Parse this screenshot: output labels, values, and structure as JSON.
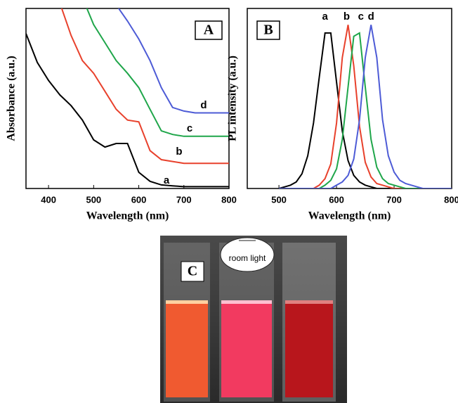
{
  "chart_data": [
    {
      "type": "line",
      "panel_label": "A",
      "x_label": "Wavelength (nm)",
      "y_label": "Absorbance (a.u.)",
      "x": [
        350,
        375,
        400,
        425,
        450,
        475,
        500,
        525,
        550,
        575,
        600,
        625,
        650,
        675,
        700,
        725,
        750,
        775,
        800
      ],
      "xlim": [
        350,
        800
      ],
      "xticks": [
        400,
        500,
        600,
        700,
        800
      ],
      "ylim": [
        0,
        10
      ],
      "series": [
        {
          "name": "a",
          "color": "#000000",
          "values": [
            8.6,
            7.0,
            6.0,
            5.2,
            4.6,
            3.8,
            2.7,
            2.3,
            2.5,
            2.5,
            0.9,
            0.4,
            0.2,
            0.15,
            0.1,
            0.1,
            0.1,
            0.1,
            0.1
          ]
        },
        {
          "name": "b",
          "color": "#e8412c",
          "values": [
            null,
            null,
            null,
            10.3,
            8.5,
            7.1,
            6.4,
            5.4,
            4.4,
            3.8,
            3.7,
            2.1,
            1.6,
            1.5,
            1.4,
            1.4,
            1.4,
            1.4,
            1.4
          ]
        },
        {
          "name": "c",
          "color": "#1fa64a",
          "values": [
            null,
            null,
            null,
            null,
            null,
            10.6,
            9.1,
            8.1,
            7.1,
            6.4,
            5.6,
            4.4,
            3.2,
            3.0,
            2.9,
            2.9,
            2.9,
            2.9,
            2.9
          ]
        },
        {
          "name": "d",
          "color": "#4d5bd6",
          "values": [
            null,
            null,
            null,
            null,
            null,
            null,
            null,
            null,
            10.2,
            9.3,
            8.3,
            7.1,
            5.6,
            4.5,
            4.3,
            4.2,
            4.2,
            4.2,
            4.2
          ]
        }
      ]
    },
    {
      "type": "line",
      "panel_label": "B",
      "x_label": "Wavelength (nm)",
      "y_label": "PL intensity (a.u.)",
      "x": [
        500,
        510,
        520,
        530,
        540,
        550,
        560,
        570,
        580,
        590,
        600,
        610,
        620,
        630,
        640,
        650,
        660,
        670,
        680,
        690,
        700,
        710,
        720,
        730,
        740,
        750,
        760,
        770,
        780,
        790,
        800
      ],
      "xlim": [
        445,
        800
      ],
      "xticks": [
        500,
        600,
        700,
        800
      ],
      "ylim": [
        0,
        1.1
      ],
      "series": [
        {
          "name": "a",
          "color": "#000000",
          "values": [
            0,
            0.01,
            0.02,
            0.04,
            0.09,
            0.2,
            0.4,
            0.68,
            0.95,
            0.95,
            0.65,
            0.35,
            0.17,
            0.08,
            0.04,
            0.02,
            0.01,
            0,
            0,
            0,
            0,
            0,
            0,
            0,
            0,
            0,
            0,
            0,
            0,
            0,
            0
          ]
        },
        {
          "name": "b",
          "color": "#e8412c",
          "values": [
            0,
            0,
            0,
            0,
            0,
            0,
            0,
            0.02,
            0.06,
            0.15,
            0.4,
            0.8,
            1.0,
            0.75,
            0.38,
            0.16,
            0.07,
            0.03,
            0.02,
            0.01,
            0,
            0,
            0,
            0,
            0,
            0,
            0,
            0,
            0,
            0,
            0
          ]
        },
        {
          "name": "c",
          "color": "#1fa64a",
          "values": [
            0,
            0,
            0,
            0,
            0,
            0,
            0,
            0,
            0.02,
            0.05,
            0.12,
            0.3,
            0.62,
            0.93,
            0.95,
            0.62,
            0.3,
            0.13,
            0.06,
            0.03,
            0.02,
            0.01,
            0,
            0,
            0,
            0,
            0,
            0,
            0,
            0,
            0
          ]
        },
        {
          "name": "d",
          "color": "#4d5bd6",
          "values": [
            0,
            0,
            0,
            0,
            0,
            0,
            0,
            0,
            0,
            0,
            0.02,
            0.04,
            0.08,
            0.18,
            0.42,
            0.8,
            1.0,
            0.8,
            0.42,
            0.2,
            0.1,
            0.05,
            0.03,
            0.02,
            0.01,
            0,
            0,
            0,
            0,
            0,
            0
          ]
        }
      ]
    }
  ],
  "photo": {
    "panel_label": "C",
    "caption": "room light"
  }
}
